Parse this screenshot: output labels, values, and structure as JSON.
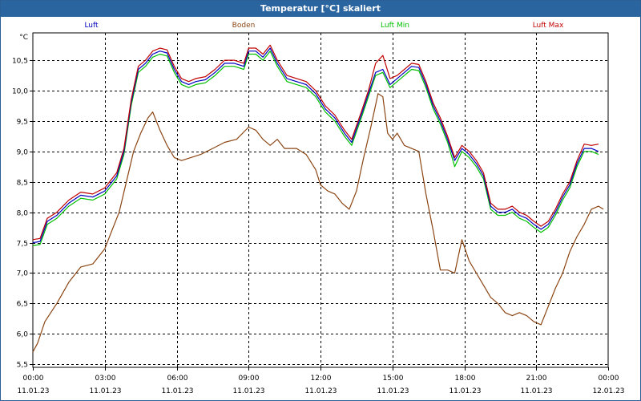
{
  "window": {
    "title": "Temperatur [°C] skaliert"
  },
  "chart_data": {
    "type": "line",
    "ylabel": "°C",
    "ylim": [
      5.45,
      10.95
    ],
    "xlim": [
      0,
      24
    ],
    "grid": true,
    "legend": "top",
    "y_ticks": [
      "5,5",
      "6,0",
      "6,5",
      "7,0",
      "7,5",
      "8,0",
      "8,5",
      "9,0",
      "9,5",
      "10,0",
      "10,5"
    ],
    "y_tick_values": [
      5.5,
      6.0,
      6.5,
      7.0,
      7.5,
      8.0,
      8.5,
      9.0,
      9.5,
      10.0,
      10.5
    ],
    "x_ticks": [
      {
        "time": "00:00",
        "date": "11.01.23",
        "hour": 0
      },
      {
        "time": "03:00",
        "date": "11.01.23",
        "hour": 3
      },
      {
        "time": "06:00",
        "date": "11.01.23",
        "hour": 6
      },
      {
        "time": "09:00",
        "date": "11.01.23",
        "hour": 9
      },
      {
        "time": "12:00",
        "date": "11.01.23",
        "hour": 12
      },
      {
        "time": "15:00",
        "date": "11.01.23",
        "hour": 15
      },
      {
        "time": "18:00",
        "date": "11.01.23",
        "hour": 18
      },
      {
        "time": "21:00",
        "date": "11.01.23",
        "hour": 21
      },
      {
        "time": "00:00",
        "date": "12.01.23",
        "hour": 24
      }
    ],
    "series": [
      {
        "name": "Luft",
        "color": "#0000c0",
        "points": [
          [
            0,
            7.5
          ],
          [
            0.3,
            7.52
          ],
          [
            0.6,
            7.85
          ],
          [
            1.0,
            7.95
          ],
          [
            1.5,
            8.15
          ],
          [
            2.0,
            8.28
          ],
          [
            2.5,
            8.25
          ],
          [
            3.0,
            8.35
          ],
          [
            3.5,
            8.6
          ],
          [
            3.8,
            9.0
          ],
          [
            4.1,
            9.8
          ],
          [
            4.4,
            10.35
          ],
          [
            4.7,
            10.45
          ],
          [
            5.0,
            10.6
          ],
          [
            5.3,
            10.65
          ],
          [
            5.6,
            10.62
          ],
          [
            5.9,
            10.35
          ],
          [
            6.2,
            10.15
          ],
          [
            6.5,
            10.1
          ],
          [
            6.8,
            10.15
          ],
          [
            7.2,
            10.18
          ],
          [
            7.6,
            10.3
          ],
          [
            8.0,
            10.45
          ],
          [
            8.4,
            10.45
          ],
          [
            8.8,
            10.4
          ],
          [
            9.0,
            10.65
          ],
          [
            9.3,
            10.65
          ],
          [
            9.6,
            10.55
          ],
          [
            9.9,
            10.7
          ],
          [
            10.2,
            10.45
          ],
          [
            10.6,
            10.2
          ],
          [
            11.0,
            10.15
          ],
          [
            11.4,
            10.1
          ],
          [
            11.8,
            9.95
          ],
          [
            12.2,
            9.7
          ],
          [
            12.6,
            9.55
          ],
          [
            13.0,
            9.3
          ],
          [
            13.3,
            9.15
          ],
          [
            13.7,
            9.6
          ],
          [
            14.0,
            9.95
          ],
          [
            14.3,
            10.3
          ],
          [
            14.6,
            10.35
          ],
          [
            14.9,
            10.1
          ],
          [
            15.2,
            10.2
          ],
          [
            15.5,
            10.3
          ],
          [
            15.8,
            10.4
          ],
          [
            16.1,
            10.38
          ],
          [
            16.4,
            10.1
          ],
          [
            16.7,
            9.75
          ],
          [
            17.0,
            9.5
          ],
          [
            17.3,
            9.2
          ],
          [
            17.6,
            8.85
          ],
          [
            17.9,
            9.05
          ],
          [
            18.2,
            8.95
          ],
          [
            18.5,
            8.8
          ],
          [
            18.8,
            8.6
          ],
          [
            19.1,
            8.1
          ],
          [
            19.4,
            8.0
          ],
          [
            19.7,
            8.0
          ],
          [
            20.0,
            8.05
          ],
          [
            20.3,
            7.95
          ],
          [
            20.6,
            7.9
          ],
          [
            20.9,
            7.8
          ],
          [
            21.2,
            7.72
          ],
          [
            21.5,
            7.8
          ],
          [
            21.8,
            8.0
          ],
          [
            22.1,
            8.25
          ],
          [
            22.4,
            8.45
          ],
          [
            22.7,
            8.8
          ],
          [
            23.0,
            9.05
          ],
          [
            23.3,
            9.05
          ],
          [
            23.6,
            9.0
          ]
        ]
      },
      {
        "name": "Boden",
        "color": "#8b4513",
        "points": [
          [
            0,
            5.7
          ],
          [
            0.2,
            5.85
          ],
          [
            0.5,
            6.2
          ],
          [
            1.0,
            6.5
          ],
          [
            1.5,
            6.85
          ],
          [
            2.0,
            7.1
          ],
          [
            2.5,
            7.15
          ],
          [
            3.0,
            7.4
          ],
          [
            3.3,
            7.7
          ],
          [
            3.6,
            8.0
          ],
          [
            3.9,
            8.5
          ],
          [
            4.2,
            9.0
          ],
          [
            4.5,
            9.3
          ],
          [
            4.8,
            9.55
          ],
          [
            5.0,
            9.65
          ],
          [
            5.3,
            9.35
          ],
          [
            5.6,
            9.1
          ],
          [
            5.9,
            8.9
          ],
          [
            6.2,
            8.85
          ],
          [
            6.6,
            8.9
          ],
          [
            7.0,
            8.95
          ],
          [
            7.5,
            9.05
          ],
          [
            8.0,
            9.15
          ],
          [
            8.5,
            9.2
          ],
          [
            9.0,
            9.4
          ],
          [
            9.3,
            9.35
          ],
          [
            9.6,
            9.2
          ],
          [
            9.9,
            9.1
          ],
          [
            10.2,
            9.2
          ],
          [
            10.5,
            9.05
          ],
          [
            11.0,
            9.05
          ],
          [
            11.4,
            8.95
          ],
          [
            11.8,
            8.7
          ],
          [
            12.0,
            8.45
          ],
          [
            12.3,
            8.35
          ],
          [
            12.6,
            8.3
          ],
          [
            12.9,
            8.15
          ],
          [
            13.2,
            8.05
          ],
          [
            13.5,
            8.35
          ],
          [
            13.8,
            8.9
          ],
          [
            14.1,
            9.4
          ],
          [
            14.4,
            9.95
          ],
          [
            14.6,
            9.9
          ],
          [
            14.8,
            9.3
          ],
          [
            15.0,
            9.2
          ],
          [
            15.2,
            9.3
          ],
          [
            15.5,
            9.1
          ],
          [
            15.8,
            9.05
          ],
          [
            16.1,
            9.0
          ],
          [
            16.4,
            8.3
          ],
          [
            16.7,
            7.7
          ],
          [
            17.0,
            7.05
          ],
          [
            17.3,
            7.05
          ],
          [
            17.6,
            7.0
          ],
          [
            17.9,
            7.55
          ],
          [
            18.2,
            7.2
          ],
          [
            18.5,
            7.0
          ],
          [
            18.8,
            6.8
          ],
          [
            19.1,
            6.6
          ],
          [
            19.4,
            6.5
          ],
          [
            19.7,
            6.35
          ],
          [
            20.0,
            6.3
          ],
          [
            20.3,
            6.35
          ],
          [
            20.6,
            6.3
          ],
          [
            20.9,
            6.2
          ],
          [
            21.2,
            6.15
          ],
          [
            21.5,
            6.45
          ],
          [
            21.8,
            6.75
          ],
          [
            22.1,
            7.0
          ],
          [
            22.4,
            7.35
          ],
          [
            22.7,
            7.6
          ],
          [
            23.0,
            7.8
          ],
          [
            23.3,
            8.05
          ],
          [
            23.6,
            8.1
          ],
          [
            23.8,
            8.05
          ]
        ]
      },
      {
        "name": "Luft Min",
        "color": "#00c000",
        "points": [
          [
            0,
            7.45
          ],
          [
            0.3,
            7.47
          ],
          [
            0.6,
            7.8
          ],
          [
            1.0,
            7.9
          ],
          [
            1.5,
            8.1
          ],
          [
            2.0,
            8.23
          ],
          [
            2.5,
            8.2
          ],
          [
            3.0,
            8.3
          ],
          [
            3.5,
            8.55
          ],
          [
            3.8,
            8.95
          ],
          [
            4.1,
            9.75
          ],
          [
            4.4,
            10.3
          ],
          [
            4.7,
            10.4
          ],
          [
            5.0,
            10.55
          ],
          [
            5.3,
            10.6
          ],
          [
            5.6,
            10.57
          ],
          [
            5.9,
            10.3
          ],
          [
            6.2,
            10.1
          ],
          [
            6.5,
            10.05
          ],
          [
            6.8,
            10.1
          ],
          [
            7.2,
            10.13
          ],
          [
            7.6,
            10.25
          ],
          [
            8.0,
            10.4
          ],
          [
            8.4,
            10.4
          ],
          [
            8.8,
            10.35
          ],
          [
            9.0,
            10.6
          ],
          [
            9.3,
            10.6
          ],
          [
            9.6,
            10.5
          ],
          [
            9.9,
            10.65
          ],
          [
            10.2,
            10.4
          ],
          [
            10.6,
            10.15
          ],
          [
            11.0,
            10.1
          ],
          [
            11.4,
            10.05
          ],
          [
            11.8,
            9.9
          ],
          [
            12.2,
            9.65
          ],
          [
            12.6,
            9.5
          ],
          [
            13.0,
            9.25
          ],
          [
            13.3,
            9.1
          ],
          [
            13.7,
            9.55
          ],
          [
            14.0,
            9.9
          ],
          [
            14.3,
            10.25
          ],
          [
            14.6,
            10.3
          ],
          [
            14.9,
            10.05
          ],
          [
            15.2,
            10.15
          ],
          [
            15.5,
            10.25
          ],
          [
            15.8,
            10.35
          ],
          [
            16.1,
            10.33
          ],
          [
            16.4,
            10.05
          ],
          [
            16.7,
            9.7
          ],
          [
            17.0,
            9.45
          ],
          [
            17.3,
            9.15
          ],
          [
            17.6,
            8.75
          ],
          [
            17.9,
            9.0
          ],
          [
            18.2,
            8.9
          ],
          [
            18.5,
            8.75
          ],
          [
            18.8,
            8.55
          ],
          [
            19.1,
            8.05
          ],
          [
            19.4,
            7.95
          ],
          [
            19.7,
            7.95
          ],
          [
            20.0,
            8.0
          ],
          [
            20.3,
            7.9
          ],
          [
            20.6,
            7.85
          ],
          [
            20.9,
            7.75
          ],
          [
            21.2,
            7.67
          ],
          [
            21.5,
            7.75
          ],
          [
            21.8,
            7.95
          ],
          [
            22.1,
            8.2
          ],
          [
            22.4,
            8.4
          ],
          [
            22.7,
            8.75
          ],
          [
            23.0,
            9.0
          ],
          [
            23.3,
            9.0
          ],
          [
            23.6,
            8.95
          ]
        ]
      },
      {
        "name": "Luft Max",
        "color": "#c00000",
        "points": [
          [
            0,
            7.55
          ],
          [
            0.3,
            7.57
          ],
          [
            0.6,
            7.9
          ],
          [
            1.0,
            8.0
          ],
          [
            1.5,
            8.2
          ],
          [
            2.0,
            8.33
          ],
          [
            2.5,
            8.3
          ],
          [
            3.0,
            8.4
          ],
          [
            3.5,
            8.65
          ],
          [
            3.8,
            9.05
          ],
          [
            4.1,
            9.85
          ],
          [
            4.4,
            10.4
          ],
          [
            4.7,
            10.5
          ],
          [
            5.0,
            10.65
          ],
          [
            5.3,
            10.7
          ],
          [
            5.6,
            10.67
          ],
          [
            5.9,
            10.4
          ],
          [
            6.2,
            10.2
          ],
          [
            6.5,
            10.15
          ],
          [
            6.8,
            10.2
          ],
          [
            7.2,
            10.23
          ],
          [
            7.6,
            10.35
          ],
          [
            8.0,
            10.5
          ],
          [
            8.4,
            10.5
          ],
          [
            8.8,
            10.45
          ],
          [
            9.0,
            10.7
          ],
          [
            9.3,
            10.7
          ],
          [
            9.6,
            10.6
          ],
          [
            9.9,
            10.75
          ],
          [
            10.2,
            10.5
          ],
          [
            10.6,
            10.25
          ],
          [
            11.0,
            10.2
          ],
          [
            11.4,
            10.15
          ],
          [
            11.8,
            10.0
          ],
          [
            12.2,
            9.75
          ],
          [
            12.6,
            9.6
          ],
          [
            13.0,
            9.35
          ],
          [
            13.3,
            9.2
          ],
          [
            13.7,
            9.65
          ],
          [
            14.0,
            10.0
          ],
          [
            14.3,
            10.45
          ],
          [
            14.6,
            10.58
          ],
          [
            14.9,
            10.2
          ],
          [
            15.2,
            10.25
          ],
          [
            15.5,
            10.35
          ],
          [
            15.8,
            10.45
          ],
          [
            16.1,
            10.43
          ],
          [
            16.4,
            10.15
          ],
          [
            16.7,
            9.8
          ],
          [
            17.0,
            9.55
          ],
          [
            17.3,
            9.25
          ],
          [
            17.6,
            8.9
          ],
          [
            17.9,
            9.1
          ],
          [
            18.2,
            9.0
          ],
          [
            18.5,
            8.85
          ],
          [
            18.8,
            8.65
          ],
          [
            19.1,
            8.15
          ],
          [
            19.4,
            8.05
          ],
          [
            19.7,
            8.05
          ],
          [
            20.0,
            8.1
          ],
          [
            20.3,
            8.0
          ],
          [
            20.6,
            7.95
          ],
          [
            20.9,
            7.85
          ],
          [
            21.2,
            7.77
          ],
          [
            21.5,
            7.85
          ],
          [
            21.8,
            8.05
          ],
          [
            22.1,
            8.3
          ],
          [
            22.4,
            8.5
          ],
          [
            22.7,
            8.85
          ],
          [
            23.0,
            9.12
          ],
          [
            23.3,
            9.1
          ],
          [
            23.6,
            9.12
          ]
        ]
      }
    ]
  }
}
